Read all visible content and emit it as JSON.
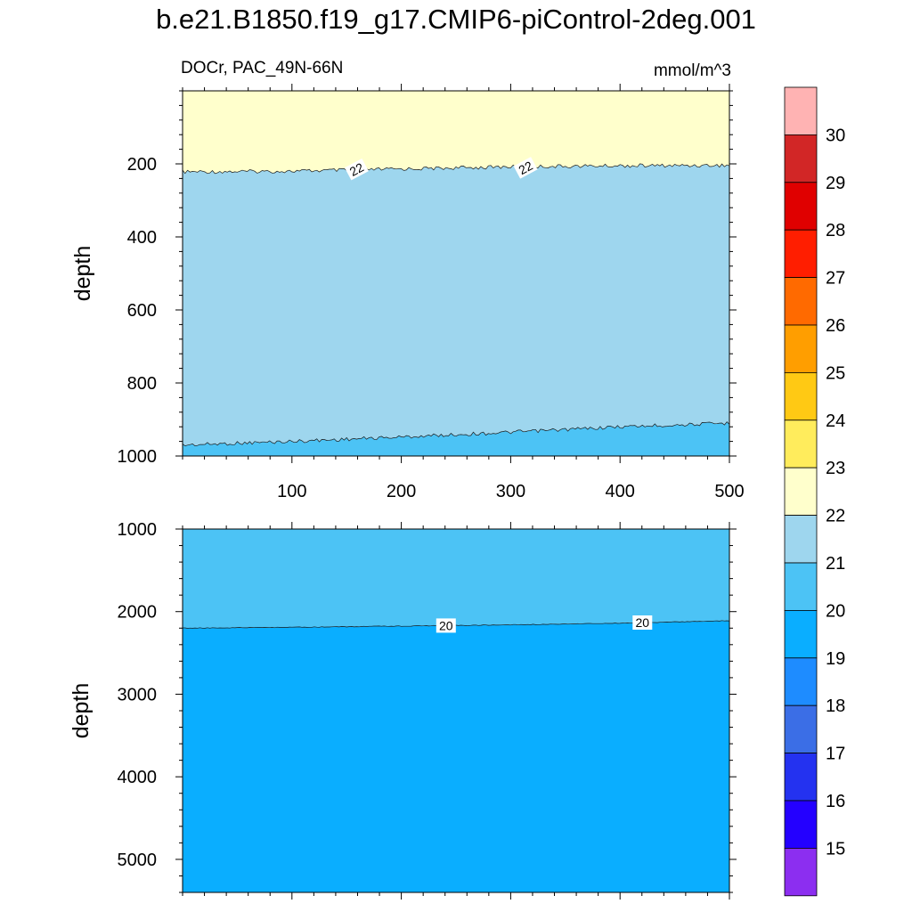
{
  "title": "b.e21.B1850.f19_g17.CMIP6-piControl-2deg.001",
  "colors": {
    "levels": [
      "#8c2ef0",
      "#2400ff",
      "#2432f0",
      "#3b6ee6",
      "#1e8cff",
      "#0aaeff",
      "#4cc3f5",
      "#9ed6ee",
      "#ffffcc",
      "#ffec5c",
      "#ffc914",
      "#ff9e00",
      "#ff6a00",
      "#ff1e00",
      "#e00000",
      "#d22626",
      "#ffb3b3"
    ]
  },
  "chart_data": [
    {
      "type": "contour",
      "panel": "top",
      "left_label": "DOCr, PAC_49N-66N",
      "right_label": "mmol/m^3",
      "ylabel": "depth",
      "xlabel": "",
      "xlim": [
        0,
        500
      ],
      "ylim": [
        1000,
        0
      ],
      "x_ticks": [
        100,
        200,
        300,
        400,
        500
      ],
      "y_ticks": [
        200,
        400,
        600,
        800,
        1000
      ],
      "regions": [
        {
          "band": "22-23",
          "from_depth": 0,
          "to_contour": "22"
        },
        {
          "band": "21-22",
          "between": [
            "22",
            "21"
          ]
        },
        {
          "band": "20-21",
          "from_contour": "21",
          "to_depth": 1000
        }
      ],
      "contours": [
        {
          "level": "22",
          "x": [
            0,
            100,
            200,
            300,
            400,
            500
          ],
          "depth": [
            222,
            220,
            214,
            208,
            205,
            204
          ],
          "labels_at_x": [
            158,
            313
          ]
        },
        {
          "level": "21",
          "x": [
            0,
            100,
            200,
            300,
            400,
            500
          ],
          "depth": [
            970,
            960,
            948,
            935,
            920,
            910
          ],
          "labels_at_x": []
        }
      ]
    },
    {
      "type": "contour",
      "panel": "bottom",
      "ylabel": "depth",
      "xlim": [
        0,
        500
      ],
      "ylim": [
        5400,
        1000
      ],
      "x_ticks": [
        100,
        200,
        300,
        400,
        500
      ],
      "y_ticks": [
        1000,
        2000,
        3000,
        4000,
        5000
      ],
      "regions": [
        {
          "band": "20-21",
          "from_depth": 1000,
          "to_contour": "20"
        },
        {
          "band": "19-20",
          "from_contour": "20",
          "to_depth": 5400
        }
      ],
      "contours": [
        {
          "level": "20",
          "x": [
            0,
            100,
            200,
            300,
            400,
            500
          ],
          "depth": [
            2200,
            2190,
            2175,
            2160,
            2140,
            2110
          ],
          "labels_at_x": [
            240,
            420
          ]
        }
      ]
    }
  ],
  "colorbar": {
    "labels": [
      "15",
      "16",
      "17",
      "18",
      "19",
      "20",
      "21",
      "22",
      "23",
      "24",
      "25",
      "26",
      "27",
      "28",
      "29",
      "30"
    ]
  }
}
